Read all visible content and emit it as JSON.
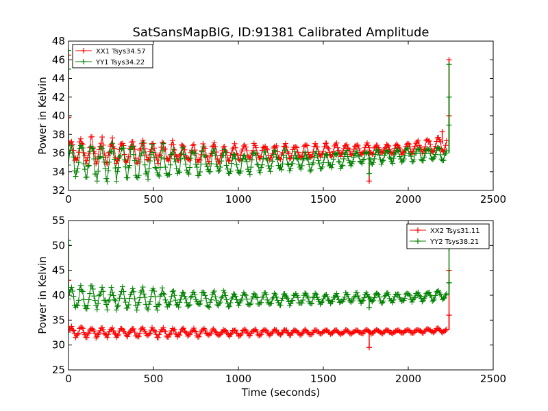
{
  "figure": {
    "title": "SatSansMapBIG, ID:91381 Calibrated Amplitude"
  },
  "chart_data": [
    {
      "type": "line",
      "marker": "plus",
      "xlabel": "",
      "ylabel": "Power in Kelvin",
      "xlim": [
        0,
        2500
      ],
      "ylim": [
        32,
        48
      ],
      "xticks": [
        "0",
        "500",
        "1000",
        "1500",
        "2000",
        "2500"
      ],
      "yticks": [
        "32",
        "34",
        "36",
        "38",
        "40",
        "42",
        "44",
        "46",
        "48"
      ],
      "legend_position": "top-left",
      "series": [
        {
          "name": "XX1 Tsys34.57",
          "color": "#ff0000",
          "baseline": [
            [
              0,
              36.3
            ],
            [
              500,
              36.1
            ],
            [
              1000,
              36.0
            ],
            [
              1500,
              36.3
            ],
            [
              2000,
              36.5
            ],
            [
              2180,
              37.0
            ]
          ],
          "amplitude": [
            [
              0,
              1.2
            ],
            [
              500,
              1.1
            ],
            [
              1000,
              0.8
            ],
            [
              1500,
              0.6
            ],
            [
              2000,
              0.5
            ],
            [
              2180,
              0.7
            ]
          ],
          "x_end": 2230,
          "outliers": [
            [
              0,
              46.5
            ],
            [
              0,
              39.8
            ],
            [
              1770,
              33.0
            ],
            [
              2200,
              38.3
            ],
            [
              2240,
              46.0
            ],
            [
              2240,
              40.0
            ]
          ]
        },
        {
          "name": "YY1 Tsys34.22",
          "color": "#008000",
          "baseline": [
            [
              0,
              35.2
            ],
            [
              500,
              35.0
            ],
            [
              1000,
              35.0
            ],
            [
              1500,
              35.2
            ],
            [
              2000,
              35.8
            ],
            [
              2180,
              36.0
            ]
          ],
          "amplitude": [
            [
              0,
              1.8
            ],
            [
              500,
              1.6
            ],
            [
              1000,
              1.1
            ],
            [
              1500,
              0.8
            ],
            [
              2000,
              0.6
            ],
            [
              2180,
              0.7
            ]
          ],
          "x_end": 2230,
          "outliers": [
            [
              0,
              47.0
            ],
            [
              0,
              45.0
            ],
            [
              1770,
              33.8
            ],
            [
              2240,
              45.5
            ],
            [
              2240,
              42.0
            ],
            [
              2240,
              39.0
            ]
          ]
        }
      ]
    },
    {
      "type": "line",
      "marker": "plus",
      "xlabel": "Time (seconds)",
      "ylabel": "Power in Kelvin",
      "xlim": [
        0,
        2500
      ],
      "ylim": [
        25,
        55
      ],
      "xticks": [
        "0",
        "500",
        "1000",
        "1500",
        "2000",
        "2500"
      ],
      "yticks": [
        "25",
        "30",
        "35",
        "40",
        "45",
        "50",
        "55"
      ],
      "legend_position": "top-right",
      "series": [
        {
          "name": "XX2 Tsys31.11",
          "color": "#ff0000",
          "baseline": [
            [
              0,
              32.6
            ],
            [
              500,
              32.5
            ],
            [
              1000,
              32.5
            ],
            [
              1500,
              32.6
            ],
            [
              2000,
              32.7
            ],
            [
              2180,
              33.0
            ]
          ],
          "amplitude": [
            [
              0,
              0.9
            ],
            [
              500,
              0.8
            ],
            [
              1000,
              0.6
            ],
            [
              1500,
              0.4
            ],
            [
              2000,
              0.3
            ],
            [
              2180,
              0.4
            ]
          ],
          "x_end": 2230,
          "outliers": [
            [
              0,
              43.0
            ],
            [
              1770,
              29.5
            ],
            [
              2240,
              36.0
            ],
            [
              2240,
              45.0
            ]
          ]
        },
        {
          "name": "YY2 Tsys38.21",
          "color": "#008000",
          "baseline": [
            [
              0,
              39.6
            ],
            [
              500,
              39.3
            ],
            [
              1000,
              39.2
            ],
            [
              1500,
              39.3
            ],
            [
              2000,
              39.6
            ],
            [
              2180,
              40.0
            ]
          ],
          "amplitude": [
            [
              0,
              1.9
            ],
            [
              500,
              1.8
            ],
            [
              1000,
              1.2
            ],
            [
              1500,
              0.9
            ],
            [
              2000,
              0.8
            ],
            [
              2180,
              0.9
            ]
          ],
          "x_end": 2230,
          "outliers": [
            [
              0,
              51.0
            ],
            [
              0,
              50.0
            ],
            [
              1770,
              37.5
            ],
            [
              2240,
              49.5
            ],
            [
              2240,
              42.5
            ]
          ]
        }
      ]
    }
  ]
}
